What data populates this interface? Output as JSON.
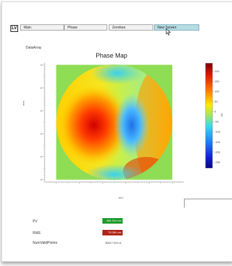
{
  "app": {
    "icon_text": "LV"
  },
  "tabs": [
    {
      "label": "Main",
      "active": false
    },
    {
      "label": "Phase",
      "active": false
    },
    {
      "label": "Zernikes",
      "active": false
    },
    {
      "label": "New Screen",
      "active": true
    }
  ],
  "data_array_label": "DataArray",
  "chart_data": {
    "type": "heatmap",
    "title": "Phase Map",
    "xlabel": "mm",
    "ylabel": "mm",
    "xlim": [
      -5,
      55
    ],
    "ylim": [
      -1,
      51
    ],
    "x_ticks": [
      0,
      10,
      20,
      30,
      40,
      50
    ],
    "y_ticks": [
      0,
      10,
      20,
      30,
      40,
      50
    ],
    "colorbar": {
      "label": "nm",
      "range": [
        -280,
        240
      ],
      "ticks": [
        200,
        150,
        100,
        50,
        0,
        -50,
        -100,
        -150,
        -200,
        -250
      ]
    },
    "background_color": "#8fdc55"
  },
  "stats": [
    {
      "label": "PV",
      "value": "484.314 nm",
      "color": "#1c9a2c"
    },
    {
      "label": "RMS",
      "value": "79.280 nm",
      "color": "#b02419"
    },
    {
      "label": "NumValidPoints",
      "value": "30617.000 ct",
      "color": ""
    }
  ]
}
